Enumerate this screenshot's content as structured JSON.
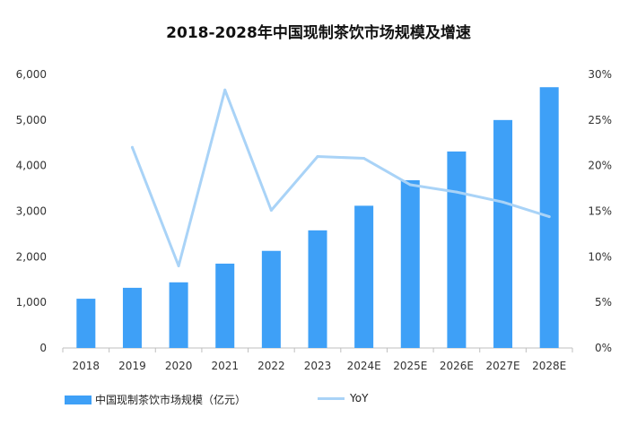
{
  "chart_data": {
    "type": "bar",
    "title": "2018-2028年中国现制茶饮市场规模及增速",
    "categories": [
      "2018",
      "2019",
      "2020",
      "2021",
      "2022",
      "2023",
      "2024E",
      "2025E",
      "2026E",
      "2027E",
      "2028E"
    ],
    "series": [
      {
        "name": "中国现制茶饮市场规模（亿元）",
        "type": "bar",
        "axis": "left",
        "color": "#3ea0f7",
        "values": [
          1080,
          1320,
          1440,
          1850,
          2130,
          2580,
          3120,
          3680,
          4310,
          5000,
          5720
        ]
      },
      {
        "name": "YoY",
        "type": "line",
        "axis": "right",
        "color": "#a9d3f7",
        "values": [
          null,
          22.0,
          9.0,
          28.3,
          15.1,
          21.0,
          20.8,
          17.9,
          17.1,
          16.0,
          14.4
        ]
      }
    ],
    "y_left": {
      "min": 0,
      "max": 6000,
      "ticks": [
        "0",
        "1,000",
        "2,000",
        "3,000",
        "4,000",
        "5,000",
        "6,000"
      ]
    },
    "y_right": {
      "min": 0,
      "max": 30,
      "ticks": [
        "0%",
        "5%",
        "10%",
        "15%",
        "20%",
        "25%",
        "30%"
      ]
    },
    "grid": false,
    "legend_position": "bottom"
  }
}
